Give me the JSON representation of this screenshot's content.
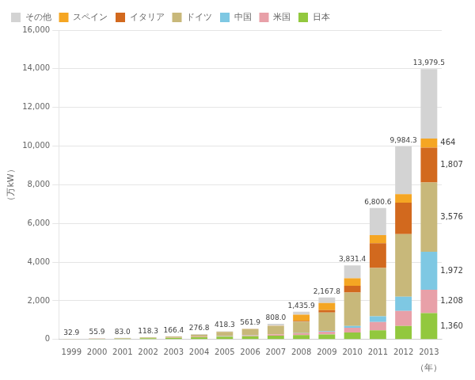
{
  "chart_data": {
    "type": "bar",
    "stacked": true,
    "xlabel": "（年）",
    "ylabel": "（万kW）",
    "categories": [
      "1999",
      "2000",
      "2001",
      "2002",
      "2003",
      "2004",
      "2005",
      "2006",
      "2007",
      "2008",
      "2009",
      "2010",
      "2011",
      "2012",
      "2013"
    ],
    "series": [
      {
        "name": "日本",
        "color": "#92c83e",
        "values": [
          20.0,
          33.0,
          45.0,
          63.0,
          86.0,
          110.0,
          142.0,
          165.0,
          193.0,
          230.0,
          263.0,
          363.0,
          469.0,
          699.0,
          1360.0
        ],
        "value_labels": [
          null,
          null,
          null,
          null,
          null,
          null,
          null,
          null,
          null,
          null,
          null,
          null,
          null,
          null,
          "1,360"
        ]
      },
      {
        "name": "米国",
        "color": "#e8a0a8",
        "values": [
          4.0,
          6.0,
          8.0,
          11.0,
          14.0,
          20.0,
          28.0,
          40.0,
          60.0,
          85.0,
          135.0,
          245.0,
          435.0,
          772.0,
          1208.0
        ],
        "value_labels": [
          null,
          null,
          null,
          null,
          null,
          null,
          null,
          null,
          null,
          null,
          null,
          null,
          null,
          null,
          "1,208"
        ]
      },
      {
        "name": "中国",
        "color": "#7ec8e3",
        "values": [
          1.0,
          2.0,
          3.0,
          4.0,
          5.0,
          7.0,
          7.0,
          8.0,
          10.0,
          15.0,
          30.0,
          86.0,
          299.0,
          742.0,
          1972.0
        ],
        "value_labels": [
          null,
          null,
          null,
          null,
          null,
          null,
          null,
          null,
          null,
          null,
          null,
          null,
          null,
          null,
          "1,972"
        ]
      },
      {
        "name": "ドイツ",
        "color": "#c8b87a",
        "values": [
          4.0,
          8.0,
          17.0,
          27.0,
          44.0,
          110.0,
          215.0,
          310.0,
          420.0,
          590.0,
          970.0,
          1730.0,
          2490.0,
          3230.0,
          3576.0
        ],
        "value_labels": [
          null,
          null,
          null,
          null,
          null,
          null,
          null,
          null,
          null,
          null,
          null,
          null,
          null,
          null,
          "3,576"
        ]
      },
      {
        "name": "イタリア",
        "color": "#d2691e",
        "values": [
          0.3,
          0.5,
          0.7,
          1.0,
          1.5,
          2.0,
          3.0,
          5.0,
          8.0,
          43.0,
          116.0,
          348.0,
          1283.0,
          1633.0,
          1807.0
        ],
        "value_labels": [
          null,
          null,
          null,
          null,
          null,
          null,
          null,
          null,
          null,
          null,
          null,
          null,
          null,
          null,
          "1,807"
        ]
      },
      {
        "name": "スペイン",
        "color": "#f5a623",
        "values": [
          0.3,
          0.5,
          0.8,
          1.0,
          1.5,
          2.0,
          3.0,
          5.0,
          7.0,
          322.0,
          370.0,
          390.0,
          418.0,
          440.0,
          464.0
        ],
        "value_labels": [
          null,
          null,
          null,
          null,
          null,
          null,
          null,
          null,
          null,
          null,
          null,
          null,
          null,
          null,
          "464"
        ]
      },
      {
        "name": "その他",
        "color": "#d3d3d3",
        "values": [
          3.3,
          5.9,
          8.5,
          11.3,
          14.4,
          25.8,
          20.3,
          28.9,
          110.0,
          150.9,
          283.8,
          669.4,
          1406.6,
          2468.3,
          3592.5
        ]
      }
    ],
    "totals": [
      32.9,
      55.9,
      83.0,
      118.3,
      166.4,
      276.8,
      418.3,
      561.9,
      808.0,
      1435.9,
      2167.8,
      3831.4,
      6800.6,
      9984.3,
      13979.5
    ],
    "total_labels": [
      "32.9",
      "55.9",
      "83.0",
      "118.3",
      "166.4",
      "276.8",
      "418.3",
      "561.9",
      "808.0",
      "1,435.9",
      "2,167.8",
      "3,831.4",
      "6,800.6",
      "9,984.3",
      "13,979.5"
    ],
    "ylim": [
      0,
      16000
    ],
    "yticks": [
      0,
      {
        "value": 2000,
        "label": "2,000"
      },
      {
        "value": 4000,
        "label": "4,000"
      },
      {
        "value": 6000,
        "label": "6,000"
      },
      {
        "value": 8000,
        "label": "8,000"
      },
      {
        "value": 10000,
        "label": "10,000"
      },
      {
        "value": 12000,
        "label": "12,000"
      },
      {
        "value": 14000,
        "label": "14,000"
      },
      {
        "value": 16000,
        "label": "16,000"
      }
    ],
    "grid": true,
    "legend": "upper left"
  }
}
